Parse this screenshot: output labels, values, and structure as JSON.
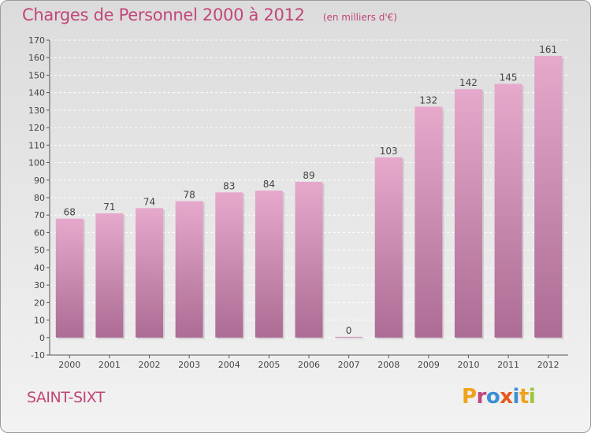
{
  "header": {
    "title": "Charges de Personnel 2000 à 2012",
    "subtitle": "(en milliers d'€)"
  },
  "footer": {
    "commune": "SAINT-SIXT",
    "logo": "Proxiti"
  },
  "colors": {
    "title": "#c1467a",
    "bar_top": "#e6a9cc",
    "bar_bottom": "#ac6c94",
    "logo_letters": [
      "#f0a21a",
      "#c1467a",
      "#3b8fd4",
      "#e55a1c",
      "#3b8fd4",
      "#f0a21a",
      "#9bc53d"
    ]
  },
  "chart_data": {
    "type": "bar",
    "title": "Charges de Personnel 2000 à 2012",
    "subtitle": "(en milliers d'€)",
    "categories": [
      "2000",
      "2001",
      "2002",
      "2003",
      "2004",
      "2005",
      "2006",
      "2007",
      "2008",
      "2009",
      "2010",
      "2011",
      "2012"
    ],
    "values": [
      68,
      71,
      74,
      78,
      83,
      84,
      89,
      0,
      103,
      132,
      142,
      145,
      161
    ],
    "ylim": [
      -10,
      170
    ],
    "yticks": [
      -10,
      0,
      10,
      20,
      30,
      40,
      50,
      60,
      70,
      80,
      90,
      100,
      110,
      120,
      130,
      140,
      150,
      160,
      170
    ],
    "grid": true,
    "xlabel": "",
    "ylabel": ""
  }
}
